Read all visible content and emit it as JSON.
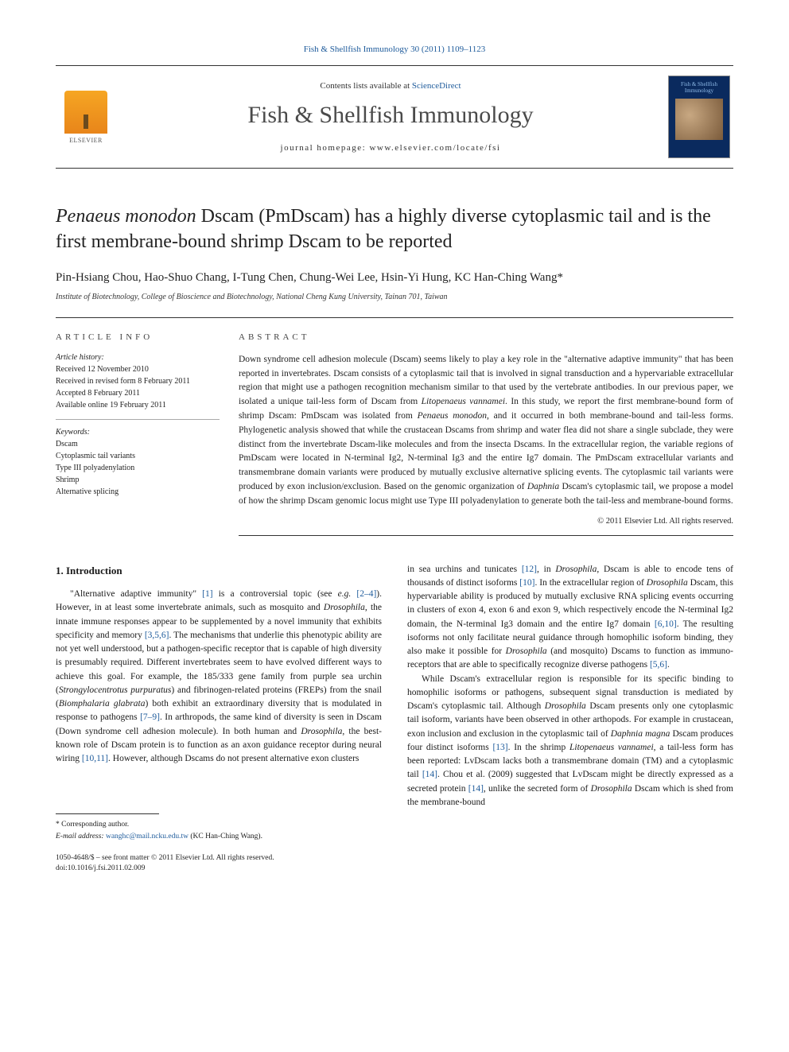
{
  "citation": "Fish & Shellfish Immunology 30 (2011) 1109–1123",
  "banner": {
    "contents_prefix": "Contents lists available at ",
    "contents_link": "ScienceDirect",
    "journal": "Fish & Shellfish Immunology",
    "homepage_prefix": "journal homepage: ",
    "homepage_url": "www.elsevier.com/locate/fsi",
    "publisher": "ELSEVIER",
    "cover_text": "Fish & Shellfish Immunology"
  },
  "title": {
    "line1_pre": "Penaeus monodon",
    "line1_post": " Dscam (PmDscam) has a highly diverse cytoplasmic tail and is the first membrane-bound shrimp Dscam to be reported"
  },
  "authors": "Pin-Hsiang Chou, Hao-Shuo Chang, I-Tung Chen, Chung-Wei Lee, Hsin-Yi Hung, KC Han-Ching Wang",
  "corr_mark": "*",
  "affiliation": "Institute of Biotechnology, College of Bioscience and Biotechnology, National Cheng Kung University, Tainan 701, Taiwan",
  "article_info_head": "ARTICLE INFO",
  "abstract_head": "ABSTRACT",
  "history": {
    "label": "Article history:",
    "received": "Received 12 November 2010",
    "revised": "Received in revised form 8 February 2011",
    "accepted": "Accepted 8 February 2011",
    "online": "Available online 19 February 2011"
  },
  "keywords": {
    "label": "Keywords:",
    "list": [
      "Dscam",
      "Cytoplasmic tail variants",
      "Type III polyadenylation",
      "Shrimp",
      "Alternative splicing"
    ]
  },
  "abstract_html": "Down syndrome cell adhesion molecule (Dscam) seems likely to play a key role in the \"alternative adaptive immunity\" that has been reported in invertebrates. Dscam consists of a cytoplasmic tail that is involved in signal transduction and a hypervariable extracellular region that might use a pathogen recognition mechanism similar to that used by the vertebrate antibodies. In our previous paper, we isolated a unique tail-less form of Dscam from <span class=\"italic\">Litopenaeus vannamei</span>. In this study, we report the first membrane-bound form of shrimp Dscam: PmDscam was isolated from <span class=\"italic\">Penaeus monodon</span>, and it occurred in both membrane-bound and tail-less forms. Phylogenetic analysis showed that while the crustacean Dscams from shrimp and water flea did not share a single subclade, they were distinct from the invertebrate Dscam-like molecules and from the insecta Dscams. In the extracellular region, the variable regions of PmDscam were located in N-terminal Ig2, N-terminal Ig3 and the entire Ig7 domain. The PmDscam extracellular variants and transmembrane domain variants were produced by mutually exclusive alternative splicing events. The cytoplasmic tail variants were produced by exon inclusion/exclusion. Based on the genomic organization of <span class=\"italic\">Daphnia</span> Dscam's cytoplasmic tail, we propose a model of how the shrimp Dscam genomic locus might use Type III polyadenylation to generate both the tail-less and membrane-bound forms.",
  "copyright": "© 2011 Elsevier Ltd. All rights reserved.",
  "intro_head": "1. Introduction",
  "col1_html": "\"Alternative adaptive immunity\" <span class=\"ref\">[1]</span> is a controversial topic (see <span class=\"italic\">e.g.</span> <span class=\"ref\">[2–4]</span>). However, in at least some invertebrate animals, such as mosquito and <span class=\"italic\">Drosophila</span>, the innate immune responses appear to be supplemented by a novel immunity that exhibits specificity and memory <span class=\"ref\">[3,5,6]</span>. The mechanisms that underlie this phenotypic ability are not yet well understood, but a pathogen-specific receptor that is capable of high diversity is presumably required. Different invertebrates seem to have evolved different ways to achieve this goal. For example, the 185/333 gene family from purple sea urchin (<span class=\"italic\">Strongylocentrotus purpuratus</span>) and fibrinogen-related proteins (FREPs) from the snail (<span class=\"italic\">Biomphalaria glabrata</span>) both exhibit an extraordinary diversity that is modulated in response to pathogens <span class=\"ref\">[7–9]</span>. In arthropods, the same kind of diversity is seen in Dscam (Down syndrome cell adhesion molecule). In both human and <span class=\"italic\">Drosophila</span>, the best-known role of Dscam protein is to function as an axon guidance receptor during neural wiring <span class=\"ref\">[10,11]</span>. However, although Dscams do not present alternative exon clusters",
  "col2_p1_html": "in sea urchins and tunicates <span class=\"ref\">[12]</span>, in <span class=\"italic\">Drosophila</span>, Dscam is able to encode tens of thousands of distinct isoforms <span class=\"ref\">[10]</span>. In the extracellular region of <span class=\"italic\">Drosophila</span> Dscam, this hypervariable ability is produced by mutually exclusive RNA splicing events occurring in clusters of exon 4, exon 6 and exon 9, which respectively encode the N-terminal Ig2 domain, the N-terminal Ig3 domain and the entire Ig7 domain <span class=\"ref\">[6,10]</span>. The resulting isoforms not only facilitate neural guidance through homophilic isoform binding, they also make it possible for <span class=\"italic\">Drosophila</span> (and mosquito) Dscams to function as immuno-receptors that are able to specifically recognize diverse pathogens <span class=\"ref\">[5,6]</span>.",
  "col2_p2_html": "While Dscam's extracellular region is responsible for its specific binding to homophilic isoforms or pathogens, subsequent signal transduction is mediated by Dscam's cytoplasmic tail. Although <span class=\"italic\">Drosophila</span> Dscam presents only one cytoplasmic tail isoform, variants have been observed in other arthopods. For example in crustacean, exon inclusion and exclusion in the cytoplasmic tail of <span class=\"italic\">Daphnia magna</span> Dscam produces four distinct isoforms <span class=\"ref\">[13]</span>. In the shrimp <span class=\"italic\">Litopenaeus vannamei</span>, a tail-less form has been reported: LvDscam lacks both a transmembrane domain (TM) and a cytoplasmic tail <span class=\"ref\">[14]</span>. Chou et al. (2009) suggested that LvDscam might be directly expressed as a secreted protein <span class=\"ref\">[14]</span>, unlike the secreted form of <span class=\"italic\">Drosophila</span> Dscam which is shed from the membrane-bound",
  "footnote": {
    "corr": "* Corresponding author.",
    "email_label": "E-mail address:",
    "email": "wanghc@mail.ncku.edu.tw",
    "email_name": "(KC Han-Ching Wang)."
  },
  "bottom": {
    "issn_line": "1050-4648/$ – see front matter © 2011 Elsevier Ltd. All rights reserved.",
    "doi_line": "doi:10.1016/j.fsi.2011.02.009"
  },
  "colors": {
    "link": "#1e5b9b",
    "text": "#1a1a1a",
    "rule": "#333333",
    "logo_orange": "#f6a623",
    "cover_bg": "#0a2a5e"
  },
  "typography": {
    "title_size_pt": 24,
    "journal_name_size_pt": 30,
    "body_size_pt": 11.5,
    "meta_size_pt": 10,
    "family": "Georgia / Times serif"
  }
}
